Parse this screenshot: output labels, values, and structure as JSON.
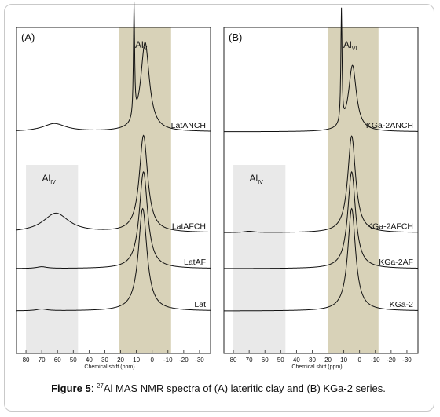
{
  "caption": {
    "label": "Figure 5",
    "isotope": "27",
    "text": "Al MAS NMR spectra of (A) lateritic clay and (B) KGa-2 series."
  },
  "colors": {
    "alvi_band": "#d8d2b8",
    "aliv_band": "#e9e9e9",
    "line": "#111111"
  },
  "chart_data": [
    {
      "type": "line",
      "panel": "(A)",
      "xlabel": "Chemical shift (ppm)",
      "xlim": [
        -37,
        86
      ],
      "x_reversed": true,
      "x_ticks": [
        "80",
        "70",
        "60",
        "50",
        "40",
        "30",
        "20",
        "10",
        "0",
        "-10",
        "-20",
        "-30"
      ],
      "regions": [
        {
          "label": "Al",
          "sub": "VI",
          "x_range": [
            21,
            -12
          ]
        },
        {
          "label": "Al",
          "sub": "IV",
          "x_range": [
            80,
            47
          ]
        }
      ],
      "series": [
        {
          "name": "LatANCH",
          "peaks": [
            {
              "x": 11.5,
              "height": 1.0,
              "width": 0.45
            },
            {
              "x": 4.5,
              "height": 0.78,
              "width": 3.3
            },
            {
              "x": 62,
              "height": 0.07,
              "width": 9
            }
          ],
          "baseline_offset": 0.32
        },
        {
          "name": "LatAFCH",
          "peaks": [
            {
              "x": 5.5,
              "height": 0.85,
              "width": 3.2
            },
            {
              "x": 61,
              "height": 0.17,
              "width": 10
            }
          ],
          "baseline_offset": 0.63
        },
        {
          "name": "LatAF",
          "peaks": [
            {
              "x": 5.5,
              "height": 0.85,
              "width": 3.2
            },
            {
              "x": 70,
              "height": 0.015,
              "width": 4
            }
          ],
          "baseline_offset": 0.74
        },
        {
          "name": "Lat",
          "peaks": [
            {
              "x": 6,
              "height": 0.9,
              "width": 3.3
            },
            {
              "x": 70,
              "height": 0.015,
              "width": 4
            }
          ],
          "baseline_offset": 0.87
        }
      ]
    },
    {
      "type": "line",
      "panel": "(B)",
      "xlabel": "Chemical shift (ppm)",
      "xlim": [
        -37,
        86
      ],
      "x_reversed": true,
      "x_ticks": [
        "80",
        "70",
        "60",
        "50",
        "40",
        "30",
        "20",
        "10",
        "0",
        "-10",
        "-20",
        "-30"
      ],
      "regions": [
        {
          "label": "Al",
          "sub": "VI",
          "x_range": [
            20,
            -12
          ]
        },
        {
          "label": "Al",
          "sub": "IV",
          "x_range": [
            80,
            47
          ]
        }
      ],
      "series": [
        {
          "name": "KGa-2ANCH",
          "peaks": [
            {
              "x": 11.5,
              "height": 1.0,
              "width": 0.45
            },
            {
              "x": 4.5,
              "height": 0.58,
              "width": 3.0
            }
          ],
          "baseline_offset": 0.32
        },
        {
          "name": "KGa-2AFCH",
          "peaks": [
            {
              "x": 5,
              "height": 0.85,
              "width": 3.0
            },
            {
              "x": 70,
              "height": 0.012,
              "width": 4
            }
          ],
          "baseline_offset": 0.63
        },
        {
          "name": "KGa-2AF",
          "peaks": [
            {
              "x": 5,
              "height": 0.85,
              "width": 3.0
            }
          ],
          "baseline_offset": 0.74
        },
        {
          "name": "KGa-2",
          "peaks": [
            {
              "x": 5,
              "height": 0.9,
              "width": 3.0
            }
          ],
          "baseline_offset": 0.87
        }
      ]
    }
  ]
}
